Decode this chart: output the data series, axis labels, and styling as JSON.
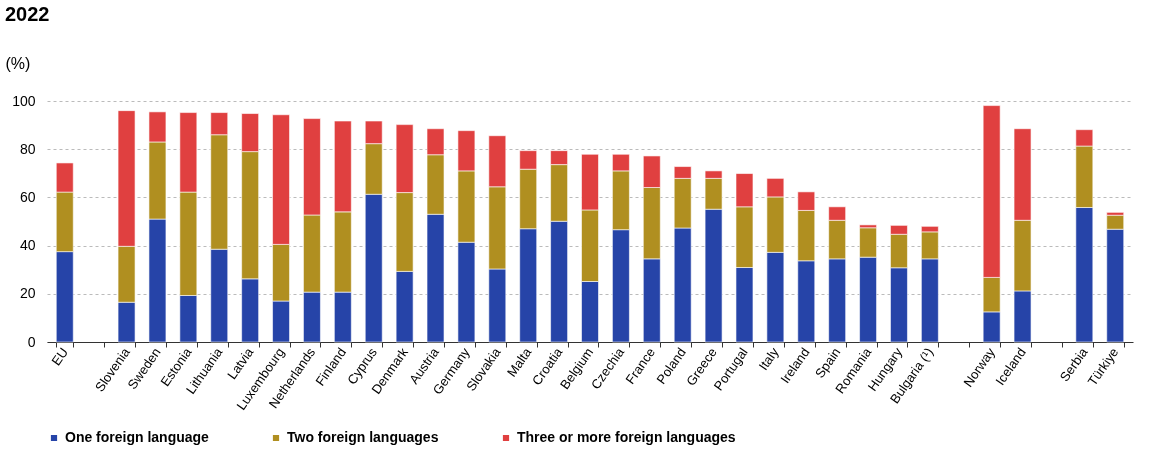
{
  "chart_data": {
    "type": "bar",
    "stacked": true,
    "title": "2022",
    "ylabel": "(%)",
    "categories": [
      "EU",
      null,
      "Slovenia",
      "Sweden",
      "Estonia",
      "Lithuania",
      "Latvia",
      "Luxembourg",
      "Netherlands",
      "Finland",
      "Cyprus",
      "Denmark",
      "Austria",
      "Germany",
      "Slovakia",
      "Malta",
      "Croatia",
      "Belgium",
      "Czechia",
      "France",
      "Poland",
      "Greece",
      "Portugal",
      "Italy",
      "Ireland",
      "Spain",
      "Romania",
      "Hungary",
      "Bulgaria (¹)",
      null,
      "Norway",
      "Iceland",
      null,
      "Serbia",
      "Türkiye"
    ],
    "series": [
      {
        "name": "One foreign language",
        "color": "#2644a8",
        "values": [
          37.5,
          null,
          16.5,
          51,
          19.3,
          38.5,
          26.2,
          17,
          20.7,
          20.7,
          61.3,
          29.3,
          53,
          41.4,
          30.3,
          47,
          50.1,
          25.1,
          46.6,
          34.5,
          47.3,
          55.1,
          30.9,
          37.2,
          33.7,
          34.5,
          35.2,
          30.8,
          34.5,
          null,
          12.5,
          21.2,
          null,
          55.8,
          46.8
        ]
      },
      {
        "name": "Two foreign languages",
        "color": "#b08f20",
        "values": [
          24.7,
          null,
          23.2,
          32,
          42.9,
          47.5,
          52.8,
          23.5,
          32,
          33.3,
          21,
          32.7,
          24.7,
          29.6,
          34.1,
          24.7,
          23.5,
          29.7,
          24.4,
          29.6,
          20.6,
          12.8,
          25.2,
          23,
          20.9,
          16,
          12.2,
          13.9,
          11.2,
          null,
          14.3,
          29.3,
          null,
          25.5,
          5.8
        ]
      },
      {
        "name": "Three or more foreign languages",
        "color": "#e04040",
        "values": [
          12.1,
          null,
          56.3,
          12.5,
          33,
          9.2,
          15.8,
          53.8,
          40,
          37.7,
          9.4,
          28.2,
          10.8,
          16.7,
          21.2,
          7.7,
          5.8,
          23.1,
          6.9,
          13.1,
          4.9,
          3.1,
          13.8,
          7.7,
          7.7,
          5.6,
          1.2,
          3.7,
          2.3,
          null,
          71.3,
          38,
          null,
          6.8,
          1.2
        ]
      }
    ],
    "ylim": [
      0,
      100
    ],
    "yticks": [
      0,
      20,
      40,
      60,
      80,
      100
    ],
    "grid": "y",
    "legend": "bottom"
  }
}
